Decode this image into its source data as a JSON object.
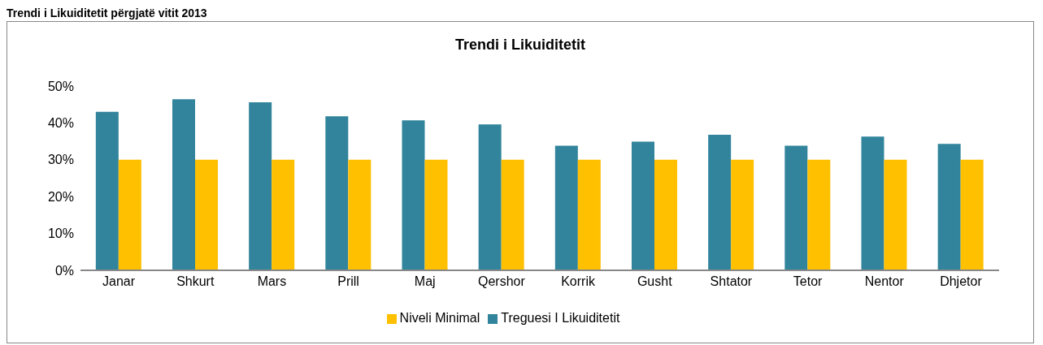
{
  "chart_data": {
    "type": "bar",
    "title": "Trendi i Likuiditetit",
    "annotations": [
      "Trendi i Likuiditetit përgjatë vitit 2013"
    ],
    "categories": [
      "Janar",
      "Shkurt",
      "Mars",
      "Prill",
      "Maj",
      "Qershor",
      "Korrik",
      "Gusht",
      "Shtator",
      "Tetor",
      "Nentor",
      "Dhjetor"
    ],
    "series": [
      {
        "name": "Treguesi I Likuiditetit",
        "color": "#31849b",
        "values": [
          43,
          46.4,
          45.6,
          41.8,
          40.7,
          39.6,
          33.8,
          34.9,
          36.8,
          33.8,
          36.3,
          34.3
        ]
      },
      {
        "name": "Niveli Minimal",
        "color": "#ffc000",
        "values": [
          30,
          30,
          30,
          30,
          30,
          30,
          30,
          30,
          30,
          30,
          30,
          30
        ]
      }
    ],
    "ylim": [
      0,
      50
    ],
    "yticks": [
      {
        "value": 0,
        "label": "0%"
      },
      {
        "value": 10,
        "label": "10%"
      },
      {
        "value": 20,
        "label": "20%"
      },
      {
        "value": 30,
        "label": "30%"
      },
      {
        "value": 40,
        "label": "40%"
      },
      {
        "value": 50,
        "label": "50%"
      }
    ],
    "grid": false,
    "legend": "bottom"
  }
}
